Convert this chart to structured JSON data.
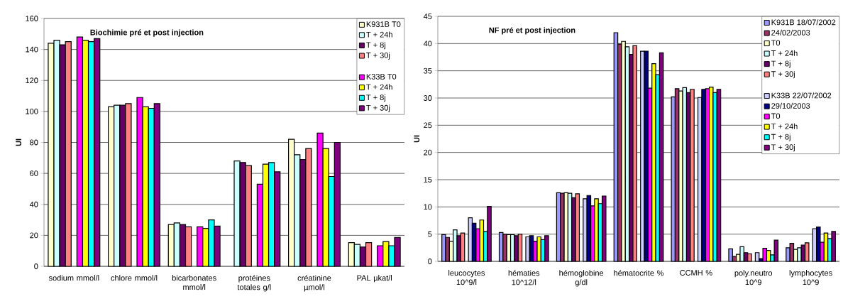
{
  "chart_data": [
    {
      "type": "bar",
      "title": "Biochimie pré et post injection",
      "ylabel": "UI",
      "categories": [
        "sodium mmol/l",
        "chlore mmol/l",
        "bicarbonates mmol/l",
        "protéines totales g/l",
        "créatinine µmol/l",
        "PAL µkat/l"
      ],
      "series": [
        {
          "name": "K931B T0",
          "color": "#ffffcc",
          "values": [
            144,
            103,
            27,
            null,
            82,
            15.3
          ]
        },
        {
          "name": "T + 24h",
          "color": "#ccffff",
          "values": [
            146,
            104,
            28,
            68,
            72,
            14.2
          ]
        },
        {
          "name": "T + 8j",
          "color": "#660066",
          "values": [
            143,
            104,
            27,
            67,
            69,
            12.5
          ]
        },
        {
          "name": "T + 30j",
          "color": "#ff8080",
          "values": [
            145,
            105,
            25.5,
            65,
            76,
            15.3
          ]
        },
        {
          "name": "K33B T0",
          "color": "#ff00ff",
          "values": [
            148,
            109,
            25.5,
            53,
            86,
            13.3
          ]
        },
        {
          "name": "T + 24h",
          "color": "#ffff00",
          "values": [
            146,
            103,
            24.5,
            66,
            76,
            16
          ]
        },
        {
          "name": "T + 8j",
          "color": "#00ffff",
          "values": [
            145,
            102,
            30,
            67,
            58,
            13.3
          ]
        },
        {
          "name": "T + 30j",
          "color": "#800080",
          "values": [
            147,
            105,
            26,
            61,
            80,
            18.6
          ]
        }
      ],
      "ylim": [
        0,
        160
      ],
      "yticks": [
        0,
        20,
        40,
        60,
        80,
        100,
        120,
        140,
        160
      ],
      "grid": "y",
      "legend": "top right"
    },
    {
      "type": "bar",
      "title": "NF pré et post injection",
      "ylabel": "UI",
      "categories": [
        "leucocytes 10^9/l",
        "hématies 10^12/l",
        "hémoglobine g/dl",
        "hématocrite %",
        "CCMH %",
        "poly.neutro 10^9",
        "lymphocytes 10^9"
      ],
      "series": [
        {
          "name": "K931B 18/07/2002",
          "color": "#9999ff",
          "values": [
            4.9,
            5.3,
            12.6,
            42,
            30.2,
            2.3,
            2.5
          ]
        },
        {
          "name": "24/02/2003",
          "color": "#993366",
          "values": [
            4.4,
            5.0,
            12.5,
            39.9,
            31.7,
            0.9,
            3.3
          ]
        },
        {
          "name": "T0",
          "color": "#ffffcc",
          "values": [
            3.7,
            4.9,
            12.6,
            40.4,
            31.3,
            1.3,
            2.2
          ]
        },
        {
          "name": "T + 24h",
          "color": "#ccffff",
          "values": [
            5.8,
            4.9,
            12.5,
            39.4,
            31.9,
            2.7,
            2.5
          ]
        },
        {
          "name": "T + 8j",
          "color": "#660066",
          "values": [
            4.7,
            4.7,
            11.7,
            38,
            31,
            1.6,
            3.0
          ]
        },
        {
          "name": "T + 30j",
          "color": "#ff8080",
          "values": [
            5.2,
            5.0,
            12.4,
            39.6,
            31.6,
            1.4,
            3.4
          ]
        },
        {
          "name": "K33B 22/07/2002",
          "color": "#ccccff",
          "values": [
            8.0,
            4.5,
            11.5,
            38.6,
            30.1,
            1.6,
            6.0
          ]
        },
        {
          "name": "29/10/2003",
          "color": "#000080",
          "values": [
            7.0,
            4.7,
            12.1,
            38.6,
            31.6,
            0.5,
            6.3
          ]
        },
        {
          "name": "T0",
          "color": "#ff00ff",
          "values": [
            6.0,
            3.7,
            10.2,
            31.8,
            31.7,
            2.4,
            3.5
          ]
        },
        {
          "name": "T + 24h",
          "color": "#ffff00",
          "values": [
            7.6,
            4.5,
            11.5,
            36.3,
            32,
            2.0,
            5.2
          ]
        },
        {
          "name": "T + 8j",
          "color": "#00ffff",
          "values": [
            5.5,
            4.0,
            10.6,
            34.3,
            31,
            1.2,
            4.2
          ]
        },
        {
          "name": "T + 30j",
          "color": "#800080",
          "values": [
            10.1,
            4.7,
            12.0,
            38.3,
            31.6,
            3.9,
            5.5
          ]
        }
      ],
      "ylim": [
        0,
        45
      ],
      "yticks": [
        0,
        5,
        10,
        15,
        20,
        25,
        30,
        35,
        40,
        45
      ],
      "grid": "y",
      "legend": "top right"
    }
  ]
}
